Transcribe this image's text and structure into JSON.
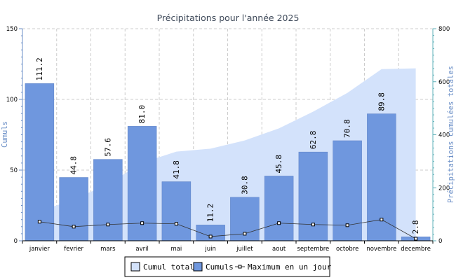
{
  "chart_data": {
    "type": "bar",
    "title": "Précipitations pour l'année 2025",
    "categories": [
      "janvier",
      "fevrier",
      "mars",
      "avril",
      "mai",
      "juin",
      "juillet",
      "aout",
      "septembre",
      "octobre",
      "novembre",
      "decembre"
    ],
    "series": [
      {
        "name": "Cumuls",
        "type": "bar",
        "axis": "left",
        "color": "#6f97de",
        "values": [
          111.2,
          44.8,
          57.6,
          81.0,
          41.8,
          11.2,
          30.8,
          45.8,
          62.8,
          70.8,
          89.8,
          2.8
        ],
        "labels": [
          "111.2",
          "44.8",
          "57.6",
          "81.0",
          "41.8",
          "11.2",
          "30.8",
          "45.8",
          "62.8",
          "70.8",
          "89.8",
          "2.8"
        ]
      },
      {
        "name": "Maximum en un jour",
        "type": "line",
        "axis": "left",
        "color": "#333333",
        "values": [
          13.5,
          10,
          11.5,
          12.5,
          12,
          3,
          5,
          12.5,
          11.5,
          11,
          15,
          1.5
        ]
      },
      {
        "name": "Cumul total",
        "type": "area",
        "axis": "right",
        "color": "#d3e2fb",
        "values": [
          111.2,
          156.0,
          213.6,
          294.6,
          336.4,
          347.6,
          378.4,
          424.2,
          487.0,
          557.8,
          647.6,
          650.4
        ]
      }
    ],
    "y_left": {
      "label": "Cumuls",
      "ylim": [
        0,
        150
      ],
      "ticks": [
        "0",
        "50",
        "100",
        "150"
      ]
    },
    "y_right": {
      "label": "Précipitations cumulées totales",
      "ylim": [
        0,
        800
      ],
      "ticks": [
        "0",
        "200",
        "400",
        "600",
        "800"
      ]
    },
    "grid": true,
    "legend_position": "bottom-center",
    "legend": [
      "Cumul total",
      "Cumuls",
      "Maximum en un jour"
    ],
    "colors": {
      "left_axis": "#6b8fc7",
      "right_axis": "#5fb1b8",
      "bar": "#6f97de",
      "area": "#d3e2fb",
      "line": "#333333"
    }
  }
}
